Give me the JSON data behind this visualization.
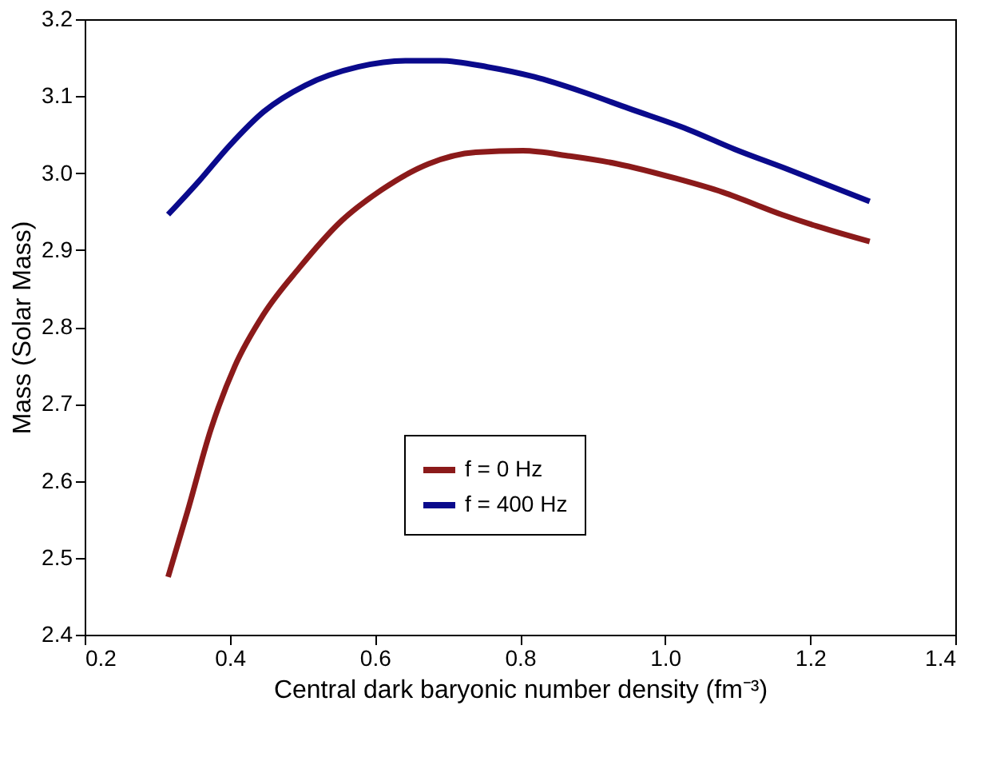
{
  "chart_data": {
    "type": "line",
    "xlabel": "Central dark baryonic number density (fm⁻³)",
    "ylabel": "Mass (Solar Mass)",
    "xlim": [
      0.2,
      1.4
    ],
    "xticks": [
      0.2,
      0.4,
      0.6,
      0.8,
      {
        "value": 1.0,
        "label": "1.0"
      },
      1.2,
      1.4
    ],
    "ylim": [
      2.4,
      3.2
    ],
    "yticks": [
      2.4,
      2.5,
      2.6,
      2.7,
      2.8,
      2.9,
      {
        "value": 3.0,
        "label": "3.0"
      },
      3.1,
      3.2
    ],
    "grid": false,
    "legend": "bottom",
    "marker": "none",
    "line_style": "solid",
    "series": [
      {
        "name": "f = 0 Hz",
        "color": "#8b1a1a",
        "x": [
          0.315,
          0.342,
          0.374,
          0.407,
          0.447,
          0.496,
          0.553,
          0.609,
          0.674,
          0.739,
          0.804,
          0.869,
          0.934,
          1.015,
          1.08,
          1.161,
          1.209,
          1.282
        ],
        "values": [
          2.475,
          2.561,
          2.667,
          2.749,
          2.817,
          2.877,
          2.937,
          2.978,
          3.012,
          3.027,
          3.029,
          3.022,
          3.012,
          2.993,
          2.975,
          2.946,
          2.931,
          2.911
        ]
      },
      {
        "name": "f = 400 Hz",
        "color": "#0a0a8c",
        "x": [
          0.315,
          0.358,
          0.399,
          0.447,
          0.504,
          0.577,
          0.642,
          0.69,
          0.755,
          0.82,
          0.885,
          0.95,
          1.031,
          1.096,
          1.169,
          1.282
        ],
        "values": [
          2.946,
          2.99,
          3.035,
          3.08,
          3.114,
          3.138,
          3.146,
          3.146,
          3.138,
          3.125,
          3.106,
          3.084,
          3.057,
          3.031,
          3.005,
          2.963
        ]
      }
    ]
  }
}
